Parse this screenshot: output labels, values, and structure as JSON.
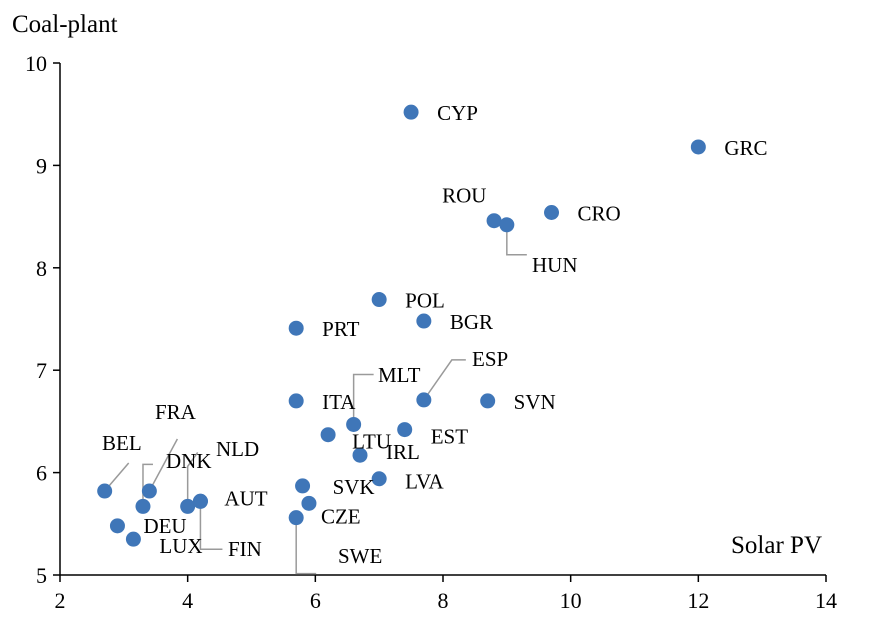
{
  "chart_data": {
    "type": "scatter",
    "title": "",
    "xlabel": "Solar PV",
    "ylabel": "Coal-plant",
    "xlim": [
      2,
      14
    ],
    "ylim": [
      5,
      10
    ],
    "xticks": [
      "2",
      "4",
      "6",
      "8",
      "10",
      "12",
      "14"
    ],
    "yticks": [
      "5",
      "6",
      "7",
      "8",
      "9",
      "10"
    ],
    "grid": false,
    "marker_color": "#3F76B8",
    "points": [
      {
        "label": "CYP",
        "x": 7.5,
        "y": 9.52
      },
      {
        "label": "GRC",
        "x": 12.0,
        "y": 9.18
      },
      {
        "label": "ROU",
        "x": 8.8,
        "y": 8.46
      },
      {
        "label": "HUN",
        "x": 9.0,
        "y": 8.42
      },
      {
        "label": "CRO",
        "x": 9.7,
        "y": 8.54
      },
      {
        "label": "POL",
        "x": 7.0,
        "y": 7.69
      },
      {
        "label": "BGR",
        "x": 7.7,
        "y": 7.48
      },
      {
        "label": "PRT",
        "x": 5.7,
        "y": 7.41
      },
      {
        "label": "MLT",
        "x": 6.6,
        "y": 6.47
      },
      {
        "label": "ESP",
        "x": 7.7,
        "y": 6.71
      },
      {
        "label": "ITA",
        "x": 5.7,
        "y": 6.7
      },
      {
        "label": "SVN",
        "x": 8.7,
        "y": 6.7
      },
      {
        "label": "EST",
        "x": 7.4,
        "y": 6.42
      },
      {
        "label": "LTU",
        "x": 6.2,
        "y": 6.37
      },
      {
        "label": "IRL",
        "x": 6.7,
        "y": 6.17
      },
      {
        "label": "LVA",
        "x": 7.0,
        "y": 5.94
      },
      {
        "label": "SVK",
        "x": 5.8,
        "y": 5.87
      },
      {
        "label": "CZE",
        "x": 5.9,
        "y": 5.7
      },
      {
        "label": "SWE",
        "x": 5.7,
        "y": 5.56
      },
      {
        "label": "AUT",
        "x": 4.2,
        "y": 5.72
      },
      {
        "label": "NLD",
        "x": 4.0,
        "y": 5.67
      },
      {
        "label": "FIN",
        "x": 4.2,
        "y": 5.72
      },
      {
        "label": "DNK",
        "x": 3.3,
        "y": 5.67
      },
      {
        "label": "FRA",
        "x": 3.4,
        "y": 5.82
      },
      {
        "label": "BEL",
        "x": 2.7,
        "y": 5.82
      },
      {
        "label": "DEU",
        "x": 2.9,
        "y": 5.48
      },
      {
        "label": "LUX",
        "x": 3.15,
        "y": 5.35
      }
    ]
  }
}
